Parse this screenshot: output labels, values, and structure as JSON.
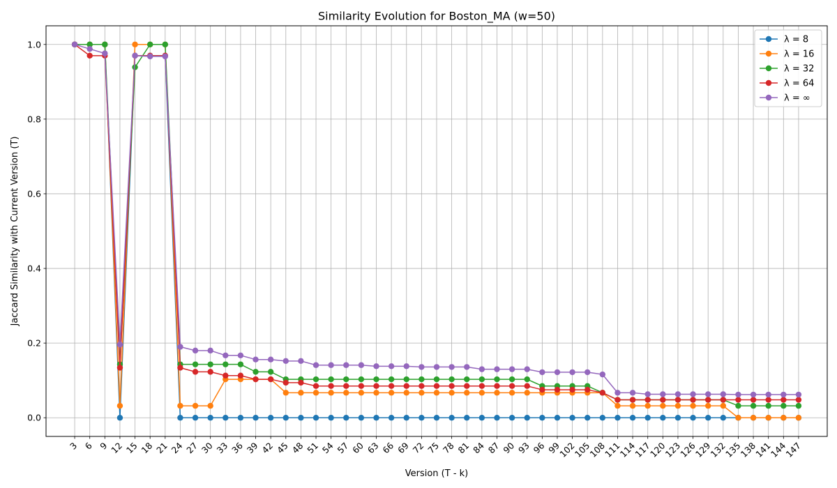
{
  "chart_data": {
    "type": "line",
    "title": "Similarity Evolution for Boston_MA (w=50)",
    "xlabel": "Version (T - k)",
    "ylabel": "Jaccard Similarity with Current Version (T)",
    "x": [
      3,
      6,
      9,
      12,
      15,
      18,
      21,
      24,
      27,
      30,
      33,
      36,
      39,
      42,
      45,
      48,
      51,
      54,
      57,
      60,
      63,
      66,
      69,
      72,
      75,
      78,
      81,
      84,
      87,
      90,
      93,
      96,
      99,
      102,
      105,
      108,
      111,
      114,
      117,
      120,
      123,
      126,
      129,
      132,
      135,
      138,
      141,
      144,
      147
    ],
    "xlim": [
      -2.7,
      152.7
    ],
    "ylim": [
      -0.05,
      1.05
    ],
    "yticks": [
      0.0,
      0.2,
      0.4,
      0.6,
      0.8,
      1.0
    ],
    "ytick_labels": [
      "0.0",
      "0.2",
      "0.4",
      "0.6",
      "0.8",
      "1.0"
    ],
    "grid": true,
    "legend_position": "top-right",
    "series": [
      {
        "name": "λ = 8",
        "color": "#1f77b4",
        "values": [
          1.0,
          1.0,
          1.0,
          0.0,
          0.97,
          0.97,
          0.97,
          0.0,
          0.0,
          0.0,
          0.0,
          0.0,
          0.0,
          0.0,
          0.0,
          0.0,
          0.0,
          0.0,
          0.0,
          0.0,
          0.0,
          0.0,
          0.0,
          0.0,
          0.0,
          0.0,
          0.0,
          0.0,
          0.0,
          0.0,
          0.0,
          0.0,
          0.0,
          0.0,
          0.0,
          0.0,
          0.0,
          0.0,
          0.0,
          0.0,
          0.0,
          0.0,
          0.0,
          0.0,
          0.0,
          0.0,
          0.0,
          0.0,
          0.0
        ]
      },
      {
        "name": "λ = 16",
        "color": "#ff7f0e",
        "values": [
          1.0,
          1.0,
          1.0,
          0.032,
          1.0,
          1.0,
          1.0,
          0.032,
          0.032,
          0.032,
          0.103,
          0.103,
          0.103,
          0.103,
          0.067,
          0.067,
          0.067,
          0.067,
          0.067,
          0.067,
          0.067,
          0.067,
          0.067,
          0.067,
          0.067,
          0.067,
          0.067,
          0.067,
          0.067,
          0.067,
          0.067,
          0.067,
          0.067,
          0.067,
          0.067,
          0.067,
          0.032,
          0.032,
          0.032,
          0.032,
          0.032,
          0.032,
          0.032,
          0.032,
          0.0,
          0.0,
          0.0,
          0.0,
          0.0
        ]
      },
      {
        "name": "λ = 32",
        "color": "#2ca02c",
        "values": [
          1.0,
          1.0,
          1.0,
          0.143,
          0.939,
          1.0,
          1.0,
          0.143,
          0.143,
          0.143,
          0.143,
          0.143,
          0.123,
          0.123,
          0.103,
          0.103,
          0.103,
          0.103,
          0.103,
          0.103,
          0.103,
          0.103,
          0.103,
          0.103,
          0.103,
          0.103,
          0.103,
          0.103,
          0.103,
          0.103,
          0.103,
          0.085,
          0.085,
          0.085,
          0.085,
          0.067,
          0.048,
          0.048,
          0.048,
          0.048,
          0.048,
          0.048,
          0.048,
          0.048,
          0.032,
          0.032,
          0.032,
          0.032,
          0.032
        ]
      },
      {
        "name": "λ = 64",
        "color": "#d62728",
        "values": [
          1.0,
          0.97,
          0.97,
          0.134,
          0.97,
          0.97,
          0.97,
          0.134,
          0.123,
          0.123,
          0.113,
          0.113,
          0.103,
          0.103,
          0.094,
          0.094,
          0.085,
          0.085,
          0.085,
          0.085,
          0.085,
          0.085,
          0.085,
          0.085,
          0.085,
          0.085,
          0.085,
          0.085,
          0.085,
          0.085,
          0.085,
          0.075,
          0.075,
          0.075,
          0.075,
          0.067,
          0.048,
          0.048,
          0.048,
          0.048,
          0.048,
          0.048,
          0.048,
          0.048,
          0.048,
          0.048,
          0.048,
          0.048,
          0.048
        ]
      },
      {
        "name": "λ = ∞",
        "color": "#9467bd",
        "values": [
          1.0,
          0.988,
          0.976,
          0.196,
          0.97,
          0.968,
          0.968,
          0.19,
          0.18,
          0.18,
          0.167,
          0.167,
          0.156,
          0.156,
          0.152,
          0.152,
          0.141,
          0.141,
          0.141,
          0.141,
          0.138,
          0.138,
          0.138,
          0.136,
          0.136,
          0.136,
          0.136,
          0.13,
          0.13,
          0.13,
          0.13,
          0.122,
          0.122,
          0.122,
          0.122,
          0.116,
          0.067,
          0.067,
          0.063,
          0.063,
          0.063,
          0.063,
          0.063,
          0.063,
          0.062,
          0.062,
          0.062,
          0.062,
          0.062
        ]
      }
    ]
  }
}
